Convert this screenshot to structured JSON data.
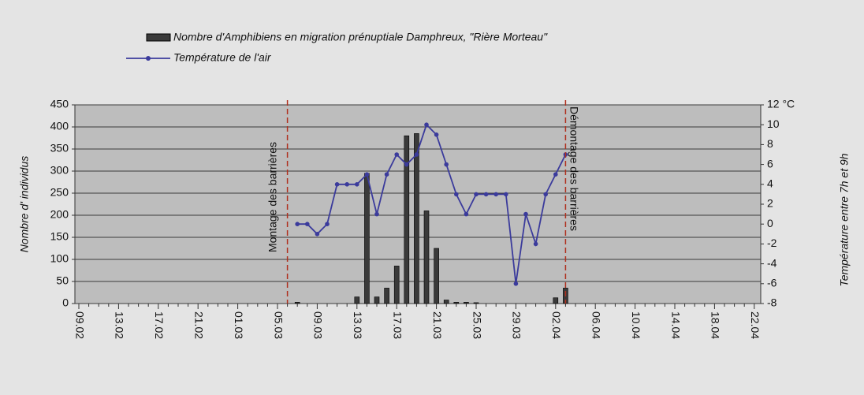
{
  "chart_data": {
    "type": "bar-line",
    "categories": [
      "09.02",
      null,
      null,
      null,
      "13.02",
      null,
      null,
      null,
      "17.02",
      null,
      null,
      null,
      "21.02",
      null,
      null,
      null,
      "01.03",
      null,
      null,
      null,
      "05.03",
      null,
      null,
      null,
      "09.03",
      null,
      null,
      null,
      "13.03",
      null,
      null,
      null,
      "17.03",
      null,
      null,
      null,
      "21.03",
      null,
      null,
      null,
      "25.03",
      null,
      null,
      null,
      "29.03",
      null,
      null,
      null,
      "02.04",
      null,
      null,
      null,
      "06.04",
      null,
      null,
      null,
      "10.04",
      null,
      null,
      null,
      "14.04",
      null,
      null,
      null,
      "18.04",
      null,
      null,
      null,
      "22.04"
    ],
    "series": [
      {
        "name": "Nombre d'Amphibiens en migration prénuptiale Damphreux, \"Rière Morteau\"",
        "type": "bar",
        "color": "#3a3a3a",
        "values": [
          null,
          null,
          null,
          null,
          null,
          null,
          null,
          null,
          null,
          null,
          null,
          null,
          null,
          null,
          null,
          null,
          null,
          null,
          null,
          null,
          null,
          null,
          3,
          0,
          0,
          0,
          0,
          0,
          15,
          295,
          15,
          35,
          85,
          380,
          385,
          210,
          125,
          8,
          3,
          3,
          2,
          0,
          0,
          0,
          0,
          0,
          0,
          0,
          13,
          35,
          null,
          null,
          null,
          null,
          null,
          null,
          null,
          null,
          null,
          null,
          null,
          null,
          null,
          null,
          null,
          null,
          null,
          null,
          null
        ]
      },
      {
        "name": "Température de l'air",
        "type": "line",
        "axis": "y2",
        "color": "#3b3b9c",
        "values": [
          null,
          null,
          null,
          null,
          null,
          null,
          null,
          null,
          null,
          null,
          null,
          null,
          null,
          null,
          null,
          null,
          null,
          null,
          null,
          null,
          null,
          null,
          0,
          0,
          -1,
          0,
          4,
          4,
          4,
          5,
          1,
          5,
          7,
          6,
          7,
          10,
          9,
          6,
          3,
          1,
          3,
          3,
          3,
          3,
          -6,
          1,
          -2,
          3,
          5,
          7,
          null,
          null,
          null,
          null,
          null,
          null,
          null,
          null,
          null,
          null,
          null,
          null,
          null,
          null,
          null,
          null,
          null,
          null,
          null
        ]
      }
    ],
    "ylabel": "Nombre d' individus",
    "y2label": "Température entre 7h et 9h",
    "ylim": [
      0,
      450
    ],
    "yticks": [
      0,
      50,
      100,
      150,
      200,
      250,
      300,
      350,
      400,
      450
    ],
    "y2lim": [
      -8,
      12
    ],
    "y2ticks": [
      -8,
      -6,
      -4,
      -2,
      0,
      2,
      4,
      6,
      8,
      10,
      {
        "value": 12,
        "label": "12 °C"
      }
    ],
    "grid": true,
    "annotations": [
      {
        "text": "Montage des barrières",
        "index": 21
      },
      {
        "text": "Démontage des barrières",
        "index": 49
      }
    ]
  }
}
